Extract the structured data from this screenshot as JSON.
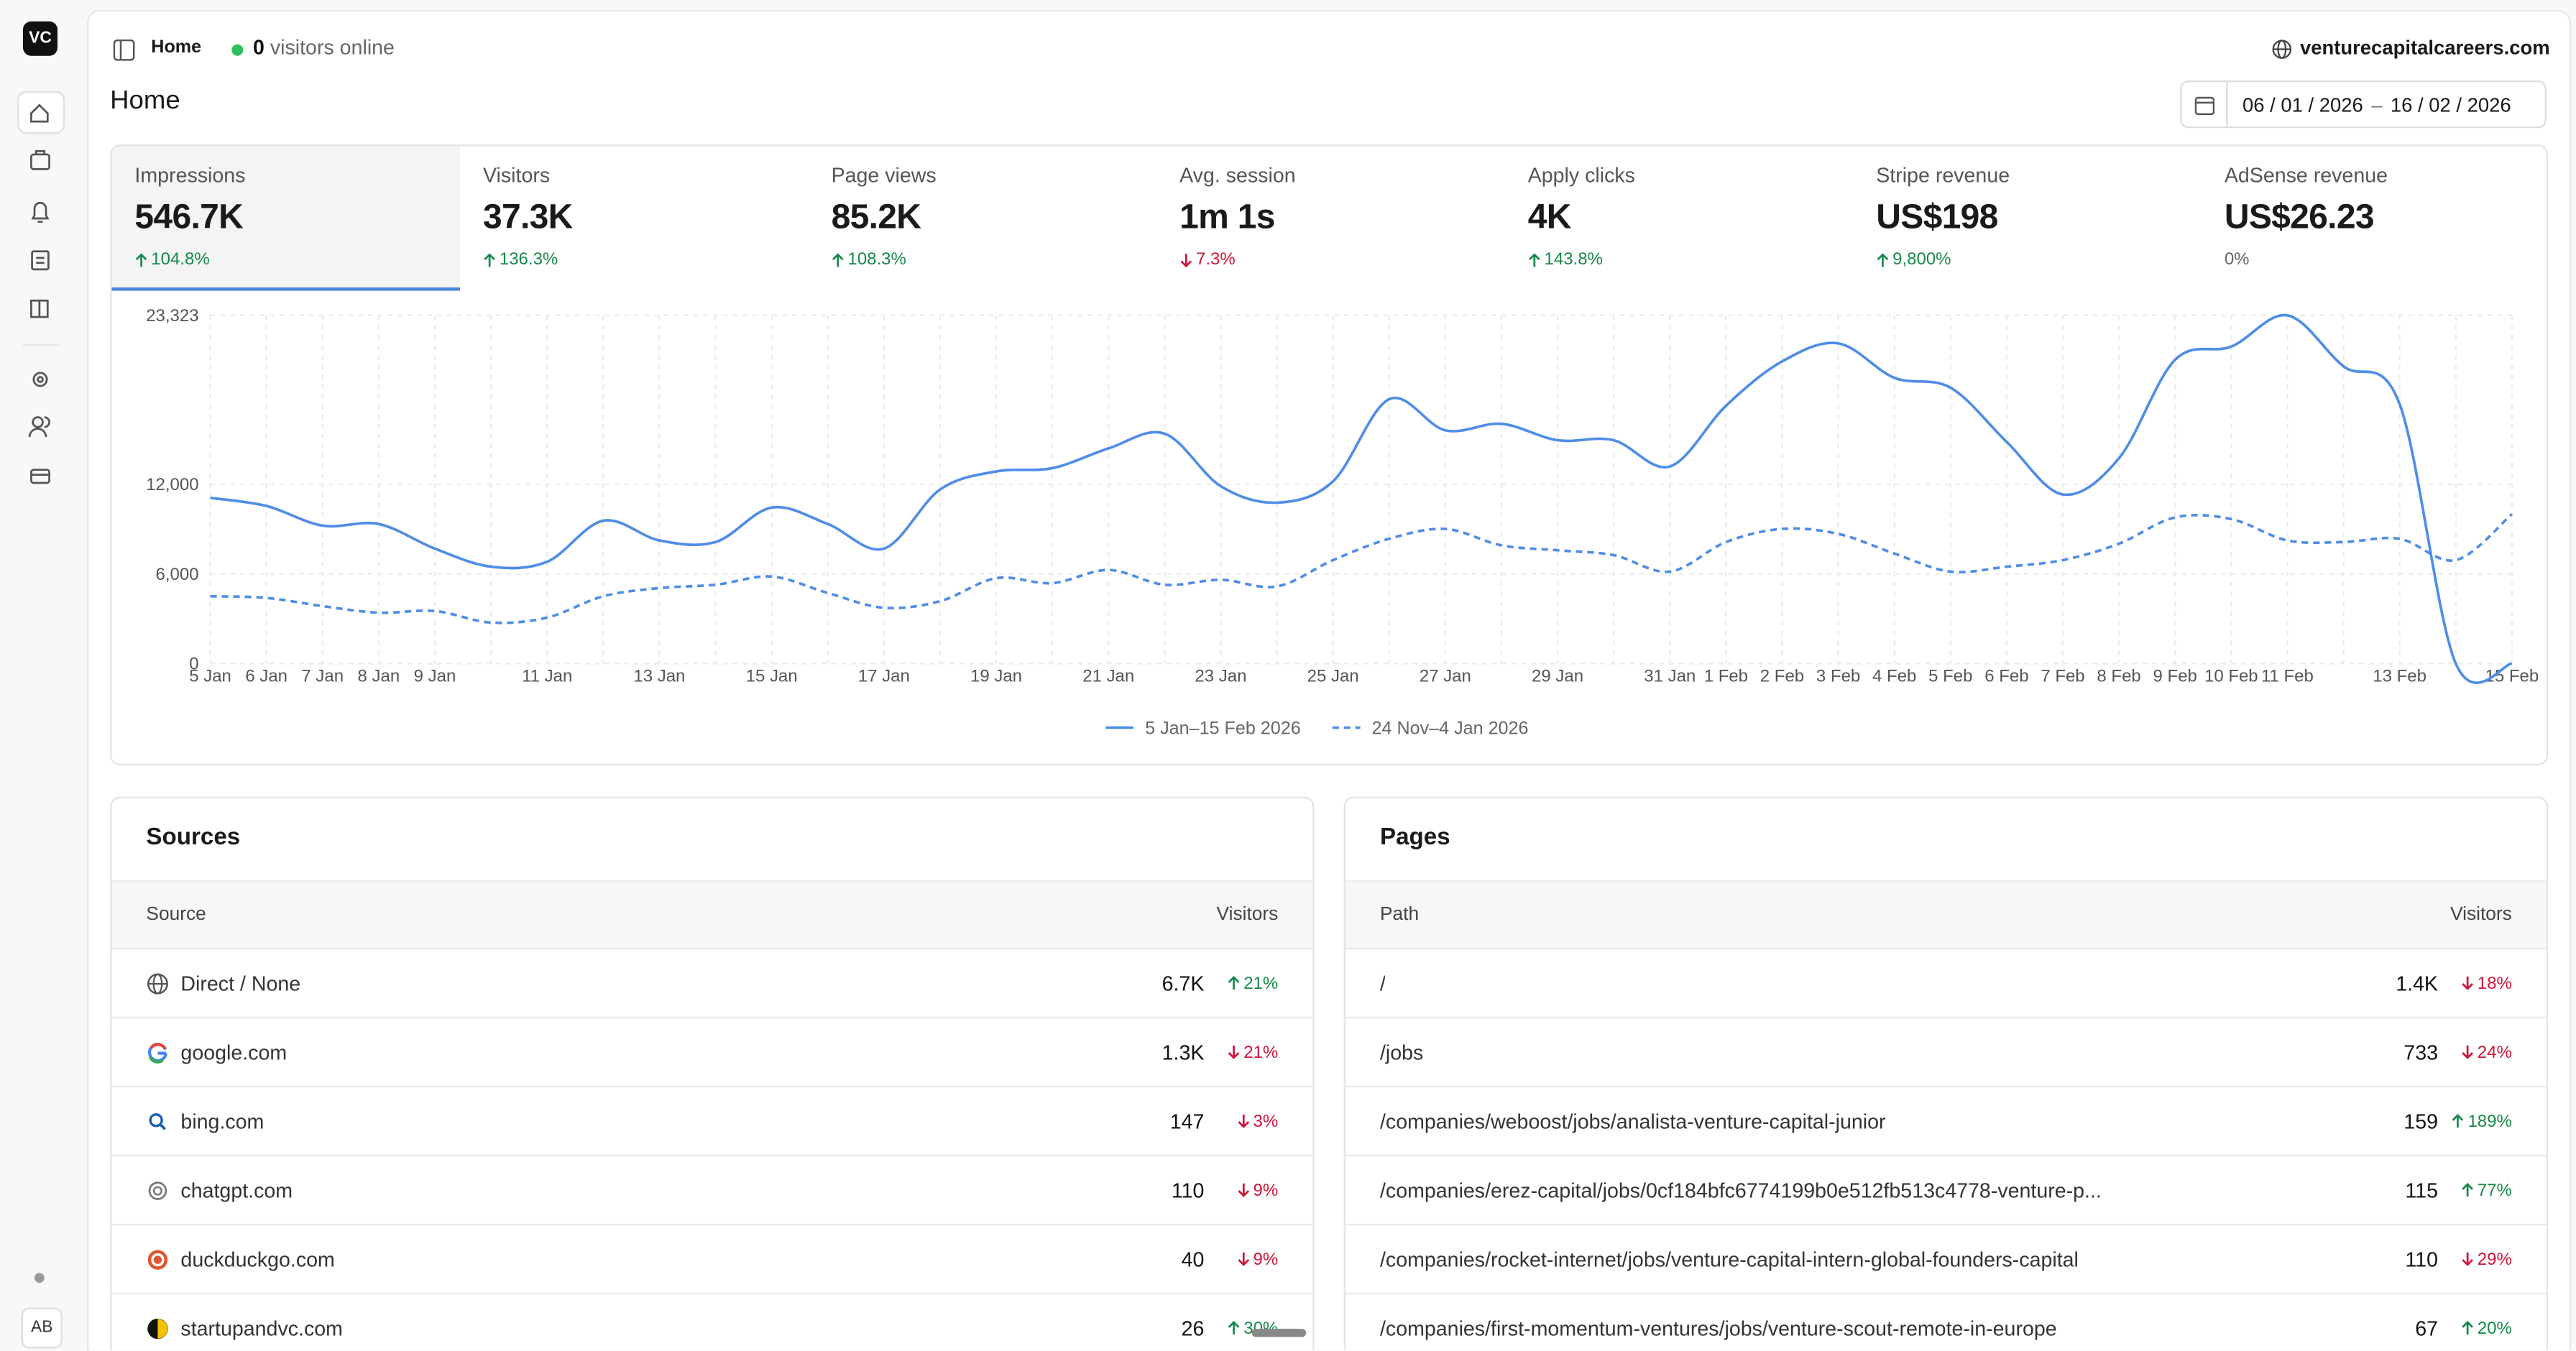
{
  "sidebar": {
    "logo": "VC",
    "avatar": "AB"
  },
  "topbar": {
    "breadcrumb": "Home",
    "online_count": "0",
    "online_text": "visitors online",
    "site": "venturecapitalcareers.com"
  },
  "page_title": "Home",
  "date_range": {
    "start": "06 / 01 / 2026",
    "dash": "–",
    "end": "16 / 02 / 2026"
  },
  "metrics": [
    {
      "label": "Impressions",
      "value": "546.7K",
      "change": "104.8%",
      "trend": "up"
    },
    {
      "label": "Visitors",
      "value": "37.3K",
      "change": "136.3%",
      "trend": "up"
    },
    {
      "label": "Page views",
      "value": "85.2K",
      "change": "108.3%",
      "trend": "up"
    },
    {
      "label": "Avg. session",
      "value": "1m 1s",
      "change": "7.3%",
      "trend": "down"
    },
    {
      "label": "Apply clicks",
      "value": "4K",
      "change": "143.8%",
      "trend": "up"
    },
    {
      "label": "Stripe revenue",
      "value": "US$198",
      "change": "9,800%",
      "trend": "up"
    },
    {
      "label": "AdSense revenue",
      "value": "US$26.23",
      "change": "0%",
      "trend": "flat"
    }
  ],
  "chart": {
    "type": "line",
    "categories": [
      "5 Jan",
      "6 Jan",
      "7 Jan",
      "8 Jan",
      "9 Jan",
      null,
      "11 Jan",
      null,
      "13 Jan",
      null,
      "15 Jan",
      null,
      "17 Jan",
      null,
      "19 Jan",
      null,
      "21 Jan",
      null,
      "23 Jan",
      null,
      "25 Jan",
      null,
      "27 Jan",
      null,
      "29 Jan",
      null,
      "31 Jan",
      "1 Feb",
      "2 Feb",
      "3 Feb",
      "4 Feb",
      "5 Feb",
      "6 Feb",
      "7 Feb",
      "8 Feb",
      "9 Feb",
      "10 Feb",
      "11 Feb",
      null,
      "13 Feb",
      null,
      "15 Feb"
    ],
    "series": [
      {
        "name": "5 Jan–15 Feb 2026",
        "color": "#4f8de6",
        "dashed": false,
        "values": [
          11100,
          10560,
          9240,
          9350,
          7700,
          6490,
          6820,
          9570,
          8250,
          8140,
          10450,
          9350,
          7700,
          11660,
          12870,
          13090,
          14410,
          15400,
          11880,
          10780,
          12210,
          17710,
          15620,
          16060,
          14960,
          14960,
          13200,
          17270,
          20240,
          21450,
          19140,
          18480,
          14850,
          11330,
          13750,
          20350,
          21230,
          23323,
          19910,
          17380,
          0,
          0
        ]
      },
      {
        "name": "24 Nov–4 Jan 2026",
        "color": "#4f8de6",
        "dashed": true,
        "values": [
          4510,
          4400,
          3850,
          3410,
          3520,
          2750,
          3080,
          4510,
          5060,
          5280,
          5830,
          4730,
          3740,
          4180,
          5720,
          5390,
          6270,
          5280,
          5610,
          5170,
          6930,
          8360,
          9020,
          7920,
          7590,
          7260,
          6160,
          8140,
          9020,
          8690,
          7370,
          6160,
          6490,
          6930,
          8030,
          9790,
          9680,
          8250,
          8140,
          8360,
          6930,
          10010
        ]
      }
    ],
    "ylim": [
      0,
      23323
    ],
    "yticks": [
      0,
      {
        "value": 6000,
        "label": "6,000"
      },
      {
        "value": 12000,
        "label": "12,000"
      },
      {
        "value": 23323,
        "label": "23,323"
      }
    ],
    "grid": true
  },
  "sources": {
    "title": "Sources",
    "columns": [
      "Source",
      "Visitors"
    ],
    "rows": [
      {
        "name": "Direct / None",
        "visitors": "6.7K",
        "change": "21%",
        "trend": "up"
      },
      {
        "name": "google.com",
        "visitors": "1.3K",
        "change": "21%",
        "trend": "down"
      },
      {
        "name": "bing.com",
        "visitors": "147",
        "change": "3%",
        "trend": "down"
      },
      {
        "name": "chatgpt.com",
        "visitors": "110",
        "change": "9%",
        "trend": "down"
      },
      {
        "name": "duckduckgo.com",
        "visitors": "40",
        "change": "9%",
        "trend": "down"
      },
      {
        "name": "startupandvc.com",
        "visitors": "26",
        "change": "30%",
        "trend": "up"
      }
    ]
  },
  "pages": {
    "title": "Pages",
    "columns": [
      "Path",
      "Visitors"
    ],
    "rows": [
      {
        "name": "/",
        "visitors": "1.4K",
        "change": "18%",
        "trend": "down"
      },
      {
        "name": "/jobs",
        "visitors": "733",
        "change": "24%",
        "trend": "down"
      },
      {
        "name": "/companies/weboost/jobs/analista-venture-capital-junior",
        "visitors": "159",
        "change": "189%",
        "trend": "up"
      },
      {
        "name": "/companies/erez-capital/jobs/0cf184bfc6774199b0e512fb513c4778-venture-p...",
        "visitors": "115",
        "change": "77%",
        "trend": "up"
      },
      {
        "name": "/companies/rocket-internet/jobs/venture-capital-intern-global-founders-capital",
        "visitors": "110",
        "change": "29%",
        "trend": "down"
      },
      {
        "name": "/companies/first-momentum-ventures/jobs/venture-scout-remote-in-europe",
        "visitors": "67",
        "change": "20%",
        "trend": "up"
      }
    ]
  }
}
